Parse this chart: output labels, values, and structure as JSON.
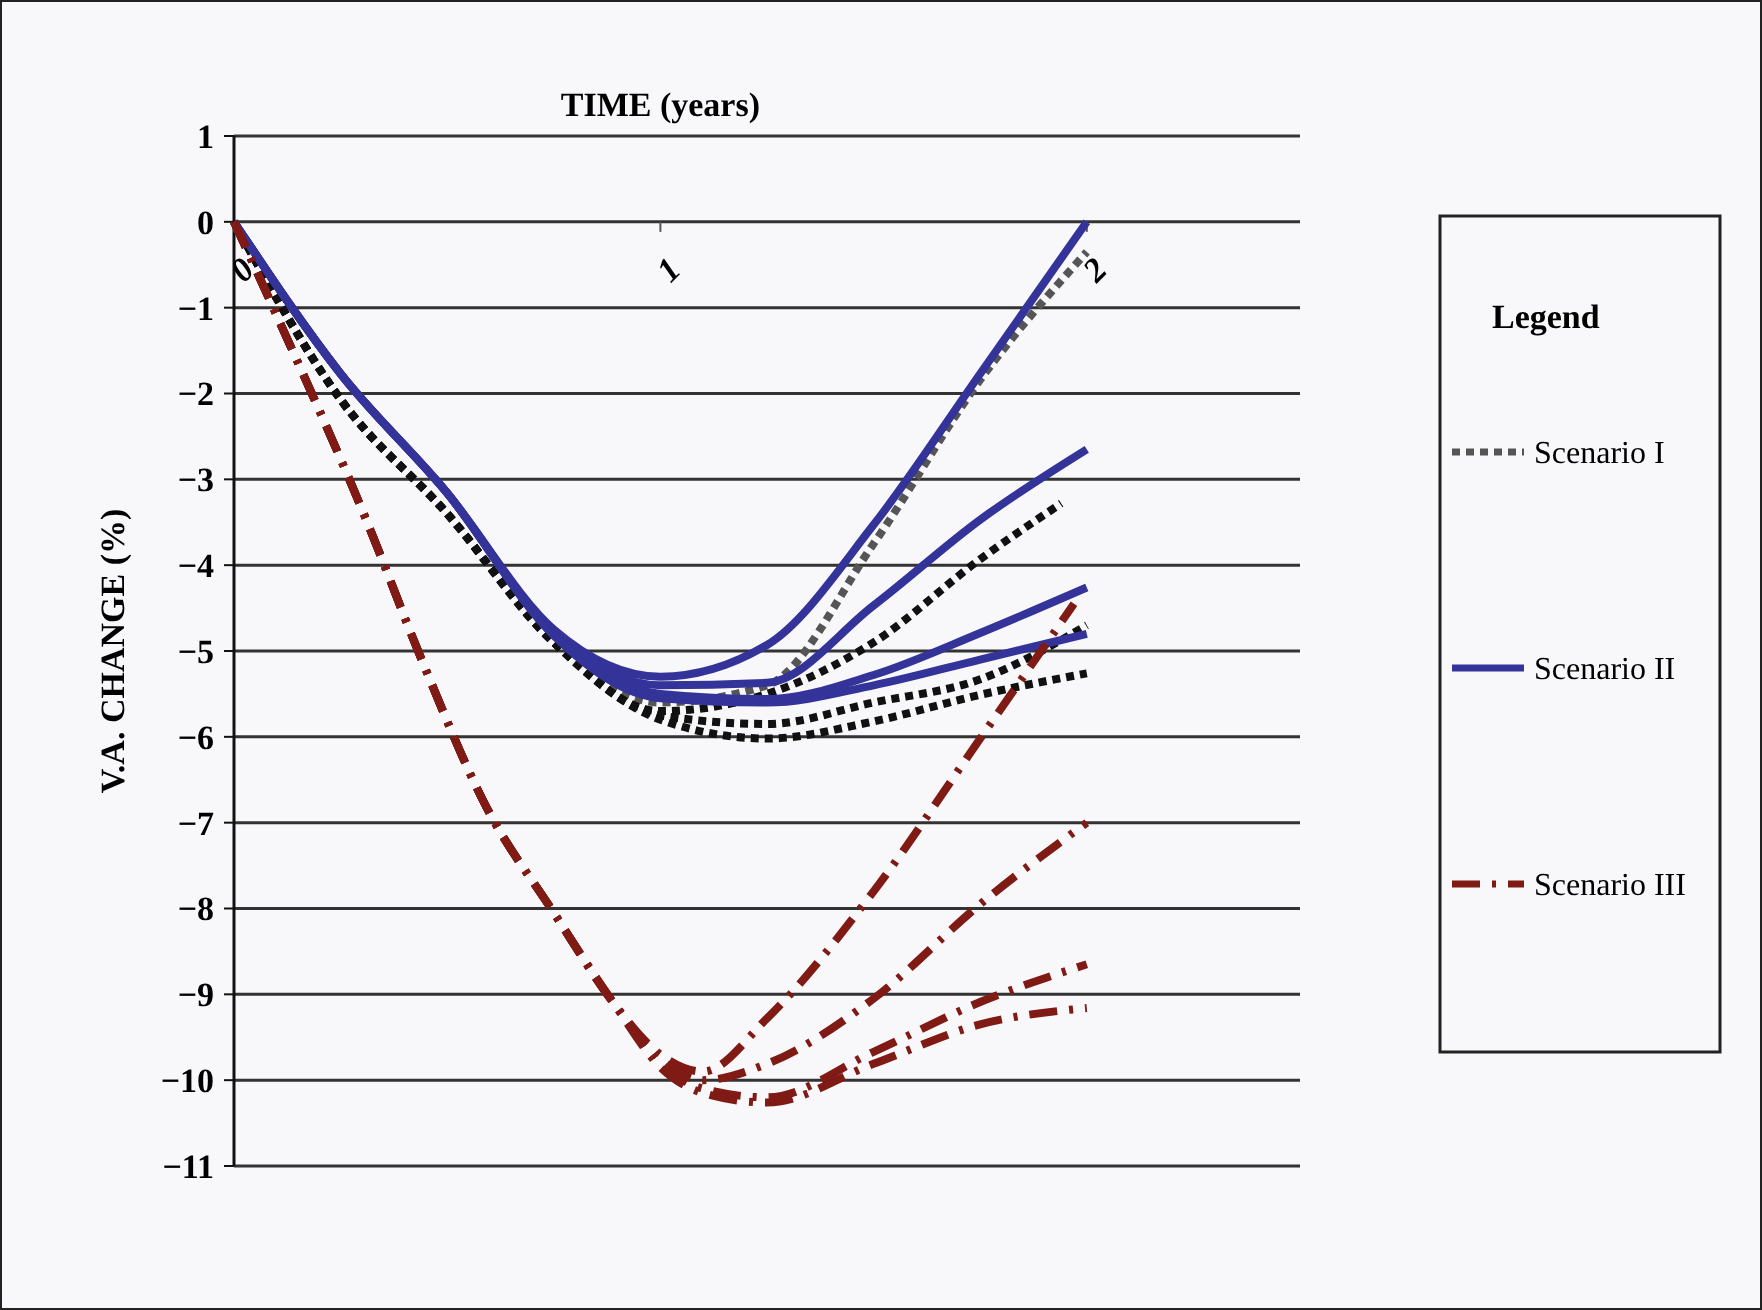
{
  "chart_data": {
    "type": "line",
    "xlabel": "TIME (years)",
    "ylabel": "V.A. CHANGE (%)",
    "legend_title": "Legend",
    "xlim": [
      0,
      2.5
    ],
    "xticks": [
      0,
      1,
      2
    ],
    "ylim": [
      -11,
      1
    ],
    "yticks": [
      1,
      0,
      -1,
      -2,
      -3,
      -4,
      -5,
      -6,
      -7,
      -8,
      -9,
      -10,
      -11
    ],
    "grid": "y",
    "legend": "right",
    "marker": "none",
    "series": [
      {
        "name": "Scenario I",
        "color": "#555555",
        "line_style": "dotted",
        "x": [
          0,
          0.25,
          0.5,
          0.75,
          1,
          1.25,
          1.5,
          1.75,
          2
        ],
        "values": [
          0,
          -2.07,
          -3.4,
          -4.9,
          -5.6,
          -5.4,
          -3.75,
          -1.84,
          -0.35
        ]
      },
      {
        "color": "#111111",
        "line_style": "dotted",
        "x": [
          0,
          0.25,
          0.5,
          0.75,
          1,
          1.25,
          1.5,
          1.75,
          1.94
        ],
        "values": [
          0,
          -2.07,
          -3.4,
          -4.9,
          -5.7,
          -5.5,
          -4.9,
          -3.93,
          -3.28
        ]
      },
      {
        "color": "#111111",
        "line_style": "dotted",
        "x": [
          0,
          0.25,
          0.5,
          0.75,
          1,
          1.25,
          1.5,
          1.75,
          2
        ],
        "values": [
          0,
          -2.07,
          -3.4,
          -4.9,
          -5.75,
          -5.85,
          -5.6,
          -5.33,
          -4.7
        ]
      },
      {
        "color": "#111111",
        "line_style": "dotted",
        "x": [
          0,
          0.25,
          0.5,
          0.75,
          1,
          1.25,
          1.5,
          1.75,
          2
        ],
        "values": [
          0,
          -2.07,
          -3.4,
          -4.9,
          -5.8,
          -6.02,
          -5.82,
          -5.51,
          -5.26
        ]
      },
      {
        "name": "Scenario II",
        "color": "#333399",
        "line_style": "solid",
        "x": [
          0,
          0.25,
          0.5,
          0.75,
          1,
          1.25,
          1.5,
          1.75,
          2
        ],
        "values": [
          0,
          -1.77,
          -3.16,
          -4.75,
          -5.3,
          -4.93,
          -3.53,
          -1.77,
          0
        ]
      },
      {
        "color": "#333399",
        "line_style": "solid",
        "x": [
          0,
          0.25,
          0.5,
          0.75,
          1,
          1.25,
          1.5,
          1.75,
          2
        ],
        "values": [
          0,
          -1.77,
          -3.16,
          -4.78,
          -5.4,
          -5.37,
          -4.47,
          -3.47,
          -2.65
        ]
      },
      {
        "color": "#333399",
        "line_style": "solid",
        "x": [
          0,
          0.25,
          0.5,
          0.75,
          1,
          1.25,
          1.5,
          1.75,
          2
        ],
        "values": [
          0,
          -1.77,
          -3.16,
          -4.8,
          -5.5,
          -5.56,
          -5.28,
          -4.79,
          -4.26
        ]
      },
      {
        "color": "#333399",
        "line_style": "solid",
        "x": [
          0,
          0.25,
          0.5,
          0.75,
          1,
          1.25,
          1.5,
          1.75,
          2
        ],
        "values": [
          0,
          -1.77,
          -3.16,
          -4.82,
          -5.55,
          -5.6,
          -5.4,
          -5.1,
          -4.8
        ]
      },
      {
        "name": "Scenario III",
        "color": "#7f1a14",
        "line_style": "dashed",
        "x": [
          0,
          0.09,
          0.31,
          0.44,
          0.59,
          0.75,
          0.89,
          1,
          1.1,
          1.25,
          1.5,
          1.75,
          1.97
        ],
        "values": [
          0,
          -0.98,
          -3.47,
          -5.1,
          -6.8,
          -8.05,
          -9.1,
          -9.7,
          -9.9,
          -9.28,
          -7.8,
          -6.02,
          -4.45
        ]
      },
      {
        "color": "#7f1a14",
        "line_style": "dashed",
        "x": [
          0,
          0.09,
          0.31,
          0.44,
          0.59,
          0.75,
          0.89,
          1,
          1.1,
          1.25,
          1.5,
          1.75,
          2
        ],
        "values": [
          0,
          -0.98,
          -3.47,
          -5.1,
          -6.8,
          -8.05,
          -9.1,
          -9.75,
          -10.0,
          -9.81,
          -9.05,
          -7.95,
          -7.0
        ]
      },
      {
        "color": "#7f1a14",
        "line_style": "dashed",
        "x": [
          0,
          0.09,
          0.31,
          0.44,
          0.59,
          0.75,
          0.89,
          1,
          1.1,
          1.25,
          1.5,
          1.75,
          2
        ],
        "values": [
          0,
          -0.98,
          -3.47,
          -5.1,
          -6.8,
          -8.05,
          -9.1,
          -9.8,
          -10.1,
          -10.2,
          -9.67,
          -9.09,
          -8.65
        ]
      },
      {
        "color": "#7f1a14",
        "line_style": "dashed",
        "x": [
          0,
          0.09,
          0.31,
          0.44,
          0.59,
          0.75,
          0.89,
          1,
          1.1,
          1.25,
          1.5,
          1.75,
          2
        ],
        "values": [
          0,
          -0.98,
          -3.47,
          -5.1,
          -6.8,
          -8.05,
          -9.1,
          -9.85,
          -10.15,
          -10.26,
          -9.81,
          -9.35,
          -9.16
        ]
      }
    ]
  }
}
